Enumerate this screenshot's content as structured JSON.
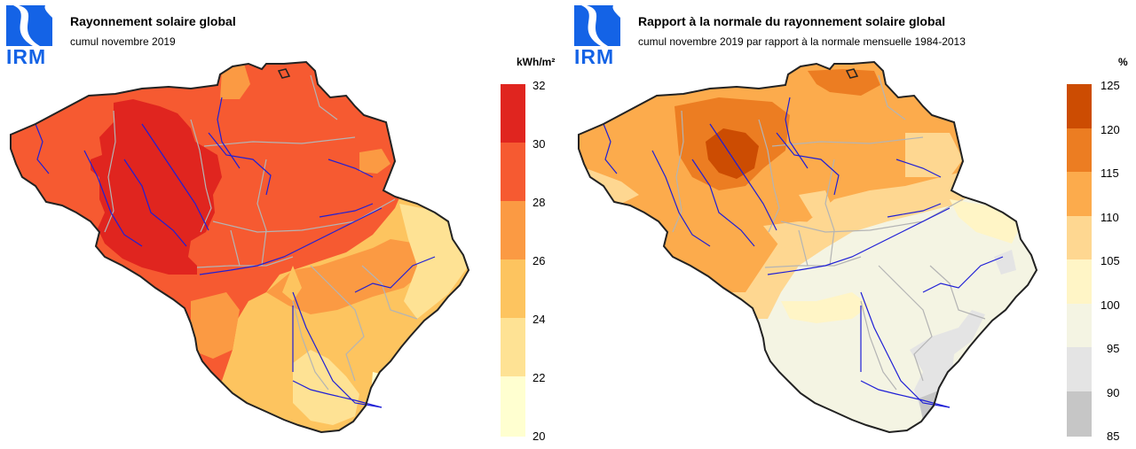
{
  "left": {
    "logo_text": "IRM",
    "title": "Rayonnement solaire global",
    "subtitle": "cumul novembre 2019",
    "unit": "kWh/m²",
    "legend": {
      "ticks": [
        "32",
        "30",
        "28",
        "26",
        "24",
        "22",
        "20"
      ],
      "bins": [
        {
          "from": 30,
          "to": 32,
          "color": "#e0251f"
        },
        {
          "from": 28,
          "to": 30,
          "color": "#f65a31"
        },
        {
          "from": 26,
          "to": 28,
          "color": "#fb9a43"
        },
        {
          "from": 24,
          "to": 26,
          "color": "#fdc45f"
        },
        {
          "from": 22,
          "to": 24,
          "color": "#fee294"
        },
        {
          "from": 20,
          "to": 22,
          "color": "#ffffd0"
        }
      ]
    }
  },
  "right": {
    "logo_text": "IRM",
    "title": "Rapport à la normale du rayonnement solaire global",
    "subtitle": "cumul novembre 2019 par rapport à la normale mensuelle 1984-2013",
    "unit": "%",
    "legend": {
      "ticks": [
        "125",
        "120",
        "115",
        "110",
        "105",
        "100",
        "95",
        "90",
        "85"
      ],
      "bins": [
        {
          "from": 120,
          "to": 125,
          "color": "#cc4c02"
        },
        {
          "from": 115,
          "to": 120,
          "color": "#ec7d22"
        },
        {
          "from": 110,
          "to": 115,
          "color": "#fcab4c"
        },
        {
          "from": 105,
          "to": 110,
          "color": "#fed791"
        },
        {
          "from": 100,
          "to": 105,
          "color": "#fff5c6"
        },
        {
          "from": 95,
          "to": 100,
          "color": "#f4f4e3"
        },
        {
          "from": 90,
          "to": 95,
          "color": "#e4e4e4"
        },
        {
          "from": 85,
          "to": 90,
          "color": "#c6c6c6"
        }
      ]
    }
  }
}
